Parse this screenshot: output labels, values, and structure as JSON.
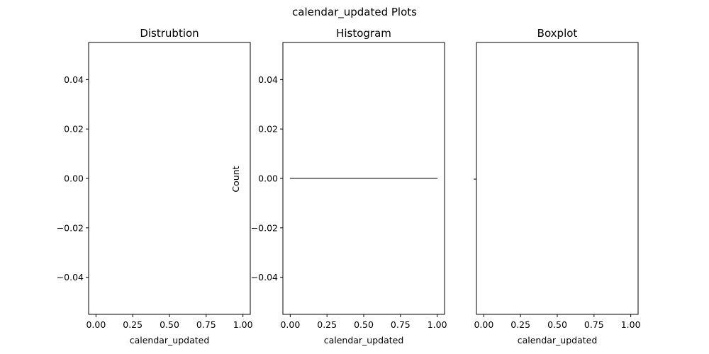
{
  "figure": {
    "title": "calendar_updated Plots"
  },
  "chart_data": [
    {
      "type": "line",
      "title": "Distrubtion",
      "xlabel": "calendar_updated",
      "ylabel": "",
      "xlim": [
        -0.05,
        1.05
      ],
      "ylim": [
        -0.055,
        0.055
      ],
      "x_ticks": [
        "0.00",
        "0.25",
        "0.50",
        "0.75",
        "1.00"
      ],
      "y_ticks": [
        "0.04",
        "0.02",
        "0.00",
        "−0.02",
        "−0.04"
      ],
      "series": []
    },
    {
      "type": "bar",
      "title": "Histogram",
      "xlabel": "calendar_updated",
      "ylabel": "Count",
      "xlim": [
        -0.05,
        1.05
      ],
      "ylim": [
        -0.055,
        0.055
      ],
      "x_ticks": [
        "0.00",
        "0.25",
        "0.50",
        "0.75",
        "1.00"
      ],
      "y_ticks": [
        "0.04",
        "0.02",
        "0.00",
        "−0.02",
        "−0.04"
      ],
      "bins": [
        {
          "x0": 0.0,
          "x1": 1.0,
          "count": 0
        }
      ]
    },
    {
      "type": "box",
      "title": "Boxplot",
      "xlabel": "calendar_updated",
      "ylabel": "",
      "xlim": [
        -0.05,
        1.05
      ],
      "x_ticks": [
        "0.00",
        "0.25",
        "0.50",
        "0.75",
        "1.00"
      ],
      "y_ticks": [
        ""
      ],
      "boxes": []
    }
  ]
}
